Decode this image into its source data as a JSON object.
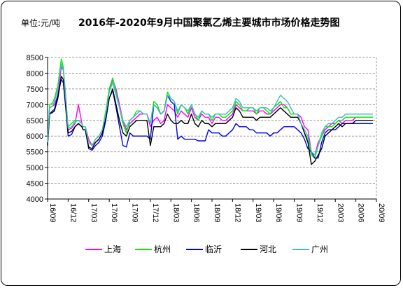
{
  "chart_data": {
    "type": "line",
    "title": "2016年-2020年9月中国聚氯乙烯主要城市市场价格走势图",
    "unit_label": "单位:元/吨",
    "xlabel": "",
    "ylabel": "",
    "ylim": [
      4000,
      8500
    ],
    "yticks": [
      4000,
      4500,
      5000,
      5500,
      6000,
      6500,
      7000,
      7500,
      8000,
      8500
    ],
    "xlim": [
      0,
      48
    ],
    "xticks": [
      "16/09",
      "16/12",
      "17/03",
      "17/06",
      "17/09",
      "17/12",
      "18/03",
      "18/06",
      "18/09",
      "18/12",
      "19/03",
      "19/06",
      "19/09",
      "19/12",
      "20/03",
      "20/06",
      "20/09"
    ],
    "xtick_months": [
      0,
      3,
      6,
      9,
      12,
      15,
      18,
      21,
      24,
      27,
      30,
      33,
      36,
      39,
      42,
      45,
      48
    ],
    "grid": "horizontal-dashed",
    "legend_position": "bottom",
    "series": [
      {
        "name": "上海",
        "color": "#ff00ff",
        "x": [
          0,
          0.3,
          0.7,
          1,
          1.5,
          2,
          2.3,
          2.6,
          3,
          3.5,
          4,
          4.5,
          5,
          5.2,
          5.5,
          6,
          6.5,
          7,
          7.5,
          8,
          8.5,
          9,
          9.5,
          10,
          10.5,
          11,
          11.5,
          12,
          12.5,
          13,
          13.5,
          14,
          14.5,
          15,
          15.5,
          16,
          16.5,
          17,
          17.5,
          18,
          18.5,
          19,
          19.5,
          20,
          20.5,
          21,
          21.5,
          22,
          22.5,
          23,
          23.5,
          24,
          24.5,
          25,
          25.5,
          26,
          26.5,
          27,
          27.5,
          28,
          28.5,
          29,
          29.5,
          30,
          30.5,
          31,
          31.5,
          32,
          32.5,
          33,
          33.5,
          34,
          34.5,
          35,
          35.5,
          36,
          36.5,
          37,
          37.5,
          38,
          38.5,
          39,
          39.5,
          40,
          40.5,
          41,
          41.5,
          42,
          42.5,
          43,
          43.5,
          44,
          44.5,
          45,
          45.5,
          46,
          46.5,
          47,
          47.5
        ],
        "y": [
          5700,
          6900,
          6950,
          7000,
          7300,
          8200,
          8100,
          7400,
          6200,
          6250,
          6400,
          7000,
          6400,
          6300,
          6300,
          5900,
          5700,
          5800,
          5900,
          6100,
          6700,
          7400,
          7800,
          7500,
          7000,
          6500,
          6200,
          6400,
          6500,
          6600,
          6700,
          6700,
          6700,
          6300,
          6500,
          6600,
          6400,
          6500,
          7000,
          6900,
          6800,
          6600,
          6800,
          6700,
          6600,
          6900,
          6600,
          6500,
          6700,
          6600,
          6600,
          6400,
          6600,
          6600,
          6500,
          6500,
          6600,
          6700,
          7000,
          6900,
          6800,
          6800,
          6800,
          6800,
          6700,
          6800,
          6800,
          6700,
          6700,
          6800,
          6900,
          7000,
          7000,
          6900,
          6700,
          6700,
          6700,
          6600,
          6300,
          6200,
          5500,
          5400,
          5800,
          6000,
          6200,
          6300,
          6400,
          6400,
          6500,
          6400,
          6500,
          6500,
          6500,
          6600,
          6600,
          6600,
          6600,
          6600,
          6600
        ],
        "values_note": ""
      },
      {
        "name": "杭州",
        "color": "#00ee00",
        "x": [
          0,
          0.3,
          0.7,
          1,
          1.5,
          2,
          2.3,
          2.6,
          3,
          3.5,
          4,
          4.5,
          5,
          5.2,
          5.5,
          6,
          6.5,
          7,
          7.5,
          8,
          8.5,
          9,
          9.5,
          10,
          10.5,
          11,
          11.5,
          12,
          12.5,
          13,
          13.5,
          14,
          14.5,
          15,
          15.5,
          16,
          16.5,
          17,
          17.5,
          18,
          18.5,
          19,
          19.5,
          20,
          20.5,
          21,
          21.5,
          22,
          22.5,
          23,
          23.5,
          24,
          24.5,
          25,
          25.5,
          26,
          26.5,
          27,
          27.5,
          28,
          28.5,
          29,
          29.5,
          30,
          30.5,
          31,
          31.5,
          32,
          32.5,
          33,
          33.5,
          34,
          34.5,
          35,
          35.5,
          36,
          36.5,
          37,
          37.5,
          38,
          38.5,
          39,
          39.5,
          40,
          40.5,
          41,
          41.5,
          42,
          42.5,
          43,
          43.5,
          44,
          44.5,
          45,
          45.5,
          46,
          46.5,
          47,
          47.5
        ],
        "y": [
          5800,
          7000,
          7050,
          7200,
          7600,
          8450,
          8200,
          7300,
          6300,
          6400,
          6500,
          6500,
          6400,
          6300,
          6300,
          5800,
          5700,
          5900,
          6000,
          6200,
          6800,
          7500,
          7850,
          7400,
          6900,
          6400,
          6100,
          6500,
          6600,
          6800,
          6800,
          6700,
          6700,
          6400,
          7100,
          7000,
          6700,
          6800,
          7400,
          7200,
          7100,
          6700,
          7000,
          6900,
          6700,
          7000,
          6700,
          6500,
          6800,
          6700,
          6700,
          6500,
          6700,
          6700,
          6600,
          6600,
          6700,
          6800,
          7100,
          7000,
          6800,
          6800,
          6900,
          6900,
          6700,
          6900,
          6900,
          6800,
          6700,
          6900,
          7000,
          7100,
          6900,
          6900,
          6700,
          6700,
          6700,
          6400,
          6100,
          5900,
          5400,
          5300,
          5700,
          6000,
          6300,
          6300,
          6300,
          6400,
          6500,
          6500,
          6600,
          6600,
          6600,
          6600,
          6600,
          6600,
          6600,
          6600,
          6600
        ]
      },
      {
        "name": "临沂",
        "color": "#0000ee",
        "x": [
          0,
          0.3,
          0.7,
          1,
          1.5,
          2,
          2.3,
          2.6,
          3,
          3.5,
          4,
          4.5,
          5,
          5.2,
          5.5,
          6,
          6.5,
          7,
          7.5,
          8,
          8.5,
          9,
          9.5,
          10,
          10.5,
          11,
          11.5,
          12,
          12.5,
          13,
          13.5,
          14,
          14.5,
          15,
          15.5,
          16,
          16.5,
          17,
          17.5,
          18,
          18.5,
          19,
          19.5,
          20,
          20.5,
          21,
          21.5,
          22,
          22.5,
          23,
          23.5,
          24,
          24.5,
          25,
          25.5,
          26,
          26.5,
          27,
          27.5,
          28,
          28.5,
          29,
          29.5,
          30,
          30.5,
          31,
          31.5,
          32,
          32.5,
          33,
          33.5,
          34,
          34.5,
          35,
          35.5,
          36,
          36.5,
          37,
          37.5,
          38,
          38.5,
          39,
          39.5,
          40,
          40.5,
          41,
          41.5,
          42,
          42.5,
          43,
          43.5,
          44,
          44.5,
          45,
          45.5,
          46,
          46.5,
          47,
          47.5
        ],
        "y": [
          5750,
          6700,
          6800,
          6850,
          7300,
          7800,
          7700,
          7000,
          6000,
          6050,
          6300,
          6400,
          6300,
          6200,
          6200,
          5600,
          5550,
          5700,
          5800,
          6000,
          6500,
          7200,
          7450,
          6900,
          6300,
          5700,
          5650,
          6100,
          6000,
          6000,
          6000,
          6000,
          6000,
          5900,
          7000,
          6900,
          6700,
          6800,
          7300,
          7100,
          7000,
          5900,
          6000,
          5900,
          5900,
          5900,
          5900,
          5850,
          5850,
          5850,
          6200,
          6100,
          6100,
          6100,
          6000,
          6000,
          6100,
          6200,
          6400,
          6300,
          6300,
          6300,
          6200,
          6200,
          6100,
          6100,
          6100,
          6100,
          6000,
          6100,
          6100,
          6200,
          6300,
          6300,
          6300,
          6300,
          6200,
          6100,
          5900,
          5600,
          5500,
          5300,
          5300,
          5800,
          6100,
          6200,
          6200,
          6200,
          6300,
          6400,
          6400,
          6400,
          6400,
          6400,
          6400,
          6400,
          6400,
          6400,
          6400
        ]
      },
      {
        "name": "河北",
        "color": "#000000",
        "x": [
          0,
          0.3,
          0.7,
          1,
          1.5,
          2,
          2.3,
          2.6,
          3,
          3.5,
          4,
          4.5,
          5,
          5.2,
          5.5,
          6,
          6.5,
          7,
          7.5,
          8,
          8.5,
          9,
          9.5,
          10,
          10.5,
          11,
          11.5,
          12,
          12.5,
          13,
          13.5,
          14,
          14.5,
          15,
          15.5,
          16,
          16.5,
          17,
          17.5,
          18,
          18.5,
          19,
          19.5,
          20,
          20.5,
          21,
          21.5,
          22,
          22.5,
          23,
          23.5,
          24,
          24.5,
          25,
          25.5,
          26,
          26.5,
          27,
          27.5,
          28,
          28.5,
          29,
          29.5,
          30,
          30.5,
          31,
          31.5,
          32,
          32.5,
          33,
          33.5,
          34,
          34.5,
          35,
          35.5,
          36,
          36.5,
          37,
          37.5,
          38,
          38.5,
          39,
          39.5,
          40,
          40.5,
          41,
          41.5,
          42,
          42.5,
          43,
          43.5,
          44,
          44.5,
          45,
          45.5,
          46,
          46.5,
          47,
          47.5
        ],
        "y": [
          5700,
          6700,
          6750,
          6800,
          7200,
          7900,
          7800,
          7100,
          6100,
          6150,
          6300,
          6400,
          6300,
          6200,
          6200,
          5650,
          5600,
          5800,
          5900,
          6100,
          6600,
          7200,
          7500,
          7000,
          6500,
          6100,
          6000,
          6300,
          6400,
          6500,
          6500,
          6500,
          6500,
          5700,
          6300,
          6300,
          6300,
          6400,
          6700,
          6500,
          6400,
          6400,
          6500,
          6400,
          6400,
          6700,
          6400,
          6300,
          6500,
          6400,
          6400,
          6300,
          6400,
          6400,
          6400,
          6400,
          6500,
          6600,
          6900,
          6800,
          6600,
          6600,
          6600,
          6600,
          6500,
          6600,
          6600,
          6600,
          6600,
          6700,
          6800,
          6900,
          6800,
          6700,
          6600,
          6600,
          6600,
          6400,
          6100,
          5800,
          5100,
          5200,
          5400,
          5600,
          6000,
          6100,
          6200,
          6300,
          6400,
          6300,
          6400,
          6400,
          6400,
          6500,
          6500,
          6500,
          6500,
          6500,
          6500
        ]
      },
      {
        "name": "广州",
        "color": "#44bbbb",
        "x": [
          0,
          0.3,
          0.7,
          1,
          1.5,
          2,
          2.3,
          2.6,
          3,
          3.5,
          4,
          4.5,
          5,
          5.2,
          5.5,
          6,
          6.5,
          7,
          7.5,
          8,
          8.5,
          9,
          9.5,
          10,
          10.5,
          11,
          11.5,
          12,
          12.5,
          13,
          13.5,
          14,
          14.5,
          15,
          15.5,
          16,
          16.5,
          17,
          17.5,
          18,
          18.5,
          19,
          19.5,
          20,
          20.5,
          21,
          21.5,
          22,
          22.5,
          23,
          23.5,
          24,
          24.5,
          25,
          25.5,
          26,
          26.5,
          27,
          27.5,
          28,
          28.5,
          29,
          29.5,
          30,
          30.5,
          31,
          31.5,
          32,
          32.5,
          33,
          33.5,
          34,
          34.5,
          35,
          35.5,
          36,
          36.5,
          37,
          37.5,
          38,
          38.5,
          39,
          39.5,
          40,
          40.5,
          41,
          41.5,
          42,
          42.5,
          43,
          43.5,
          44,
          44.5,
          45,
          45.5,
          46,
          46.5,
          47,
          47.5
        ],
        "y": [
          5800,
          6900,
          6950,
          7100,
          7500,
          8300,
          8100,
          7300,
          6250,
          6300,
          6450,
          6500,
          6400,
          6300,
          6300,
          5800,
          5700,
          5900,
          6000,
          6200,
          6700,
          7400,
          7700,
          7300,
          6900,
          6500,
          6300,
          6500,
          6600,
          6700,
          6800,
          6700,
          6700,
          6400,
          7000,
          6900,
          6700,
          6800,
          7300,
          7200,
          7100,
          6800,
          7000,
          6900,
          6800,
          7000,
          6700,
          6600,
          6800,
          6700,
          6700,
          6600,
          6700,
          6700,
          6700,
          6700,
          6800,
          6900,
          7200,
          7100,
          6900,
          6900,
          6900,
          6900,
          6800,
          6900,
          6900,
          6900,
          6800,
          6900,
          7100,
          7300,
          7200,
          7100,
          6900,
          6700,
          6700,
          6400,
          6200,
          6000,
          5500,
          5400,
          5700,
          6100,
          6300,
          6400,
          6400,
          6500,
          6600,
          6600,
          6700,
          6700,
          6700,
          6700,
          6700,
          6700,
          6700,
          6700,
          6700
        ]
      }
    ]
  }
}
